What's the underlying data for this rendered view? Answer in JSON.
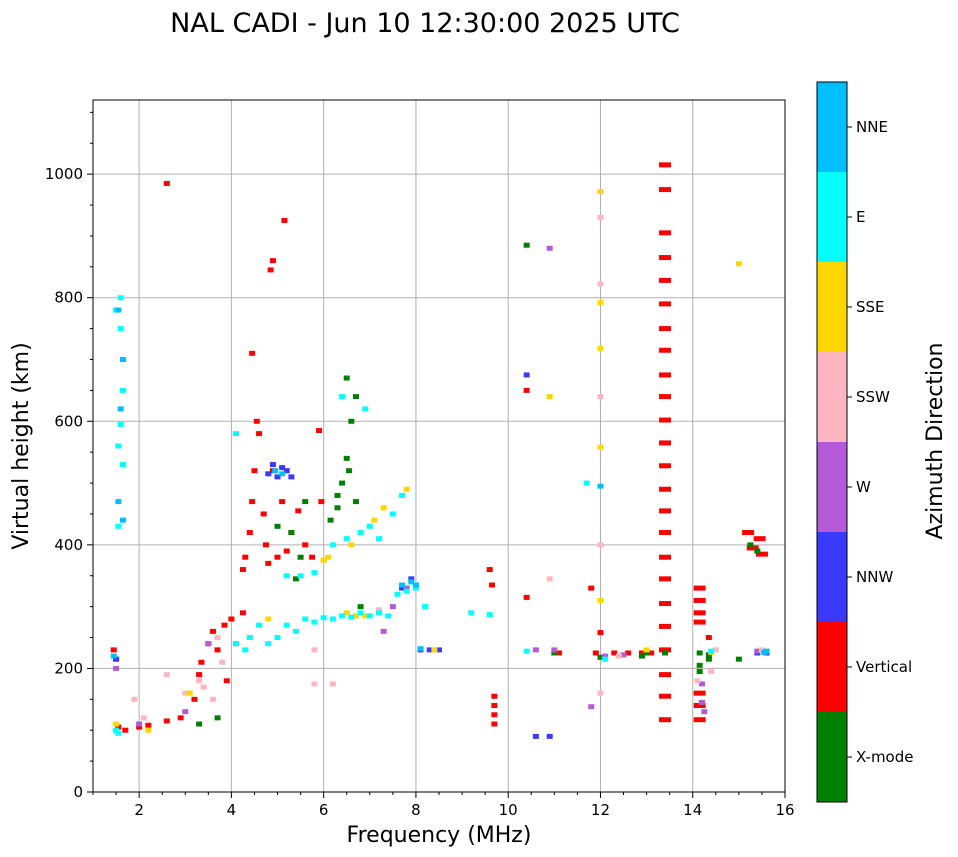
{
  "chart_data": {
    "type": "scatter",
    "title": "NAL CADI - Jun 10 12:30:00 2025 UTC",
    "xlabel": "Frequency (MHz)",
    "ylabel": "Virtual height (km)",
    "xlim": [
      1,
      16
    ],
    "ylim": [
      0,
      1120
    ],
    "xticks": [
      2,
      4,
      6,
      8,
      10,
      12,
      14,
      16
    ],
    "yticks": [
      0,
      200,
      400,
      600,
      800,
      1000
    ],
    "grid": true,
    "colorbar": {
      "title": "Azimuth Direction",
      "categories": [
        {
          "name": "X-mode",
          "color": "#008000"
        },
        {
          "name": "Vertical",
          "color": "#ff0000"
        },
        {
          "name": "NNW",
          "color": "#3a3aff"
        },
        {
          "name": "W",
          "color": "#b45ad7"
        },
        {
          "name": "SSW",
          "color": "#ffb6c1"
        },
        {
          "name": "SSE",
          "color": "#ffd700"
        },
        {
          "name": "E",
          "color": "#00ffff"
        },
        {
          "name": "NNE",
          "color": "#00bfff"
        }
      ]
    },
    "series": [
      {
        "name": "Vertical",
        "points": [
          [
            1.45,
            230
          ],
          [
            1.5,
            215
          ],
          [
            1.55,
            105
          ],
          [
            1.7,
            100
          ],
          [
            2.0,
            105
          ],
          [
            2.2,
            108
          ],
          [
            2.6,
            115
          ],
          [
            2.9,
            120
          ],
          [
            3.2,
            150
          ],
          [
            3.3,
            190
          ],
          [
            3.35,
            210
          ],
          [
            3.5,
            240
          ],
          [
            3.6,
            260
          ],
          [
            3.7,
            230
          ],
          [
            3.85,
            270
          ],
          [
            4.0,
            280
          ],
          [
            3.9,
            180
          ],
          [
            4.1,
            240
          ],
          [
            4.25,
            290
          ],
          [
            4.25,
            360
          ],
          [
            4.3,
            380
          ],
          [
            4.4,
            420
          ],
          [
            4.45,
            470
          ],
          [
            4.5,
            520
          ],
          [
            4.55,
            600
          ],
          [
            4.6,
            580
          ],
          [
            4.7,
            450
          ],
          [
            4.75,
            400
          ],
          [
            4.8,
            370
          ],
          [
            4.9,
            520
          ],
          [
            5.0,
            380
          ],
          [
            5.1,
            470
          ],
          [
            5.2,
            390
          ],
          [
            5.3,
            420
          ],
          [
            5.45,
            455
          ],
          [
            5.6,
            400
          ],
          [
            5.75,
            380
          ],
          [
            5.9,
            585
          ],
          [
            5.95,
            470
          ],
          [
            4.45,
            710
          ],
          [
            4.9,
            860
          ],
          [
            4.85,
            845
          ],
          [
            5.15,
            925
          ],
          [
            2.6,
            985
          ],
          [
            9.6,
            360
          ],
          [
            9.65,
            335
          ],
          [
            9.7,
            155
          ],
          [
            9.7,
            140
          ],
          [
            9.7,
            125
          ],
          [
            9.7,
            110
          ],
          [
            10.4,
            650
          ],
          [
            10.4,
            315
          ],
          [
            12.0,
            258
          ],
          [
            11.8,
            330
          ],
          [
            11.1,
            225
          ],
          [
            11.9,
            225
          ],
          [
            12.3,
            225
          ],
          [
            12.6,
            225
          ],
          [
            12.9,
            225
          ],
          [
            13.1,
            225
          ],
          [
            13.4,
            1015
          ],
          [
            13.4,
            975
          ],
          [
            13.4,
            905
          ],
          [
            13.4,
            865
          ],
          [
            13.4,
            828
          ],
          [
            13.4,
            790
          ],
          [
            13.4,
            750
          ],
          [
            13.4,
            715
          ],
          [
            13.4,
            675
          ],
          [
            13.4,
            640
          ],
          [
            13.4,
            602
          ],
          [
            13.4,
            565
          ],
          [
            13.4,
            528
          ],
          [
            13.4,
            490
          ],
          [
            13.4,
            455
          ],
          [
            13.4,
            420
          ],
          [
            13.4,
            380
          ],
          [
            13.4,
            345
          ],
          [
            13.4,
            305
          ],
          [
            13.4,
            268
          ],
          [
            13.4,
            230
          ],
          [
            13.4,
            190
          ],
          [
            13.4,
            155
          ],
          [
            13.4,
            117
          ],
          [
            14.15,
            330
          ],
          [
            14.15,
            310
          ],
          [
            14.15,
            290
          ],
          [
            14.15,
            275
          ],
          [
            14.15,
            160
          ],
          [
            14.15,
            140
          ],
          [
            14.15,
            117
          ],
          [
            14.35,
            250
          ],
          [
            15.2,
            420
          ],
          [
            15.45,
            410
          ],
          [
            15.3,
            395
          ],
          [
            15.5,
            385
          ]
        ]
      },
      {
        "name": "X-mode",
        "points": [
          [
            3.3,
            110
          ],
          [
            3.7,
            120
          ],
          [
            5.0,
            430
          ],
          [
            5.3,
            420
          ],
          [
            5.5,
            380
          ],
          [
            5.6,
            470
          ],
          [
            6.15,
            440
          ],
          [
            6.3,
            460
          ],
          [
            6.4,
            500
          ],
          [
            6.5,
            540
          ],
          [
            6.55,
            520
          ],
          [
            6.6,
            600
          ],
          [
            6.7,
            640
          ],
          [
            6.5,
            670
          ],
          [
            6.3,
            480
          ],
          [
            6.7,
            470
          ],
          [
            6.8,
            300
          ],
          [
            5.4,
            345
          ],
          [
            10.4,
            885
          ],
          [
            11.0,
            225
          ],
          [
            12.0,
            218
          ],
          [
            12.9,
            220
          ],
          [
            13.0,
            225
          ],
          [
            13.4,
            225
          ],
          [
            14.15,
            225
          ],
          [
            14.15,
            205
          ],
          [
            14.15,
            195
          ],
          [
            14.35,
            215
          ],
          [
            14.35,
            222
          ],
          [
            15.0,
            215
          ],
          [
            15.4,
            390
          ],
          [
            15.25,
            400
          ]
        ]
      },
      {
        "name": "NNW",
        "points": [
          [
            1.5,
            215
          ],
          [
            4.8,
            515
          ],
          [
            4.9,
            530
          ],
          [
            5.0,
            510
          ],
          [
            5.1,
            525
          ],
          [
            5.2,
            520
          ],
          [
            5.3,
            510
          ],
          [
            8.1,
            230
          ],
          [
            8.3,
            230
          ],
          [
            8.5,
            230
          ],
          [
            10.4,
            675
          ],
          [
            10.6,
            90
          ],
          [
            10.9,
            90
          ],
          [
            15.4,
            225
          ],
          [
            15.6,
            225
          ],
          [
            7.7,
            330
          ],
          [
            7.9,
            345
          ]
        ]
      },
      {
        "name": "W",
        "points": [
          [
            1.5,
            200
          ],
          [
            2.0,
            110
          ],
          [
            3.0,
            130
          ],
          [
            3.5,
            240
          ],
          [
            7.5,
            300
          ],
          [
            7.8,
            330
          ],
          [
            7.3,
            260
          ],
          [
            10.6,
            230
          ],
          [
            11.0,
            230
          ],
          [
            11.8,
            138
          ],
          [
            12.1,
            220
          ],
          [
            12.5,
            222
          ],
          [
            14.2,
            145
          ],
          [
            14.25,
            130
          ],
          [
            14.2,
            175
          ],
          [
            15.4,
            228
          ],
          [
            10.9,
            880
          ]
        ]
      },
      {
        "name": "SSW",
        "points": [
          [
            1.9,
            150
          ],
          [
            2.1,
            120
          ],
          [
            2.6,
            190
          ],
          [
            3.0,
            160
          ],
          [
            3.3,
            180
          ],
          [
            3.4,
            170
          ],
          [
            3.6,
            150
          ],
          [
            3.7,
            250
          ],
          [
            3.8,
            210
          ],
          [
            5.8,
            230
          ],
          [
            5.8,
            175
          ],
          [
            6.2,
            175
          ],
          [
            7.2,
            295
          ],
          [
            10.9,
            345
          ],
          [
            12.0,
            930
          ],
          [
            12.0,
            822
          ],
          [
            12.0,
            640
          ],
          [
            12.0,
            400
          ],
          [
            12.0,
            160
          ],
          [
            12.4,
            220
          ],
          [
            14.1,
            180
          ],
          [
            14.4,
            195
          ],
          [
            14.5,
            230
          ],
          [
            15.5,
            230
          ]
        ]
      },
      {
        "name": "SSE",
        "points": [
          [
            1.5,
            110
          ],
          [
            2.2,
            100
          ],
          [
            3.1,
            160
          ],
          [
            4.8,
            280
          ],
          [
            5.6,
            280
          ],
          [
            6.0,
            375
          ],
          [
            6.1,
            380
          ],
          [
            6.5,
            290
          ],
          [
            6.7,
            285
          ],
          [
            6.9,
            285
          ],
          [
            6.6,
            400
          ],
          [
            7.1,
            440
          ],
          [
            7.3,
            460
          ],
          [
            7.8,
            490
          ],
          [
            8.4,
            230
          ],
          [
            10.9,
            640
          ],
          [
            12.0,
            972
          ],
          [
            12.0,
            792
          ],
          [
            12.0,
            718
          ],
          [
            12.0,
            558
          ],
          [
            12.0,
            310
          ],
          [
            13.0,
            230
          ],
          [
            14.4,
            226
          ],
          [
            15.0,
            855
          ]
        ]
      },
      {
        "name": "E",
        "points": [
          [
            1.5,
            780
          ],
          [
            1.6,
            750
          ],
          [
            1.65,
            650
          ],
          [
            1.6,
            595
          ],
          [
            1.55,
            560
          ],
          [
            1.65,
            530
          ],
          [
            1.55,
            430
          ],
          [
            1.6,
            800
          ],
          [
            1.5,
            100
          ],
          [
            1.55,
            95
          ],
          [
            4.1,
            240
          ],
          [
            4.3,
            230
          ],
          [
            4.4,
            250
          ],
          [
            4.6,
            270
          ],
          [
            4.8,
            240
          ],
          [
            5.0,
            250
          ],
          [
            5.2,
            270
          ],
          [
            5.4,
            260
          ],
          [
            5.6,
            280
          ],
          [
            5.8,
            275
          ],
          [
            6.0,
            282
          ],
          [
            6.2,
            280
          ],
          [
            6.4,
            285
          ],
          [
            6.6,
            283
          ],
          [
            6.8,
            290
          ],
          [
            7.0,
            285
          ],
          [
            7.2,
            290
          ],
          [
            7.4,
            285
          ],
          [
            7.6,
            320
          ],
          [
            7.8,
            325
          ],
          [
            5.2,
            350
          ],
          [
            5.5,
            350
          ],
          [
            5.8,
            355
          ],
          [
            6.2,
            400
          ],
          [
            6.5,
            410
          ],
          [
            6.8,
            420
          ],
          [
            7.0,
            430
          ],
          [
            7.2,
            410
          ],
          [
            7.5,
            450
          ],
          [
            7.7,
            480
          ],
          [
            8.0,
            330
          ],
          [
            8.2,
            300
          ],
          [
            9.2,
            290
          ],
          [
            9.6,
            287
          ],
          [
            10.4,
            228
          ],
          [
            11.7,
            500
          ],
          [
            12.1,
            215
          ],
          [
            14.4,
            228
          ],
          [
            4.1,
            580
          ],
          [
            6.4,
            640
          ],
          [
            6.9,
            620
          ]
        ]
      },
      {
        "name": "NNE",
        "points": [
          [
            1.45,
            220
          ],
          [
            1.55,
            780
          ],
          [
            1.65,
            700
          ],
          [
            1.6,
            620
          ],
          [
            1.55,
            470
          ],
          [
            1.65,
            440
          ],
          [
            4.95,
            520
          ],
          [
            5.1,
            515
          ],
          [
            7.7,
            335
          ],
          [
            7.9,
            340
          ],
          [
            8.0,
            335
          ],
          [
            8.1,
            232
          ],
          [
            12.0,
            495
          ],
          [
            15.6,
            228
          ],
          [
            15.55,
            226
          ]
        ]
      }
    ]
  }
}
